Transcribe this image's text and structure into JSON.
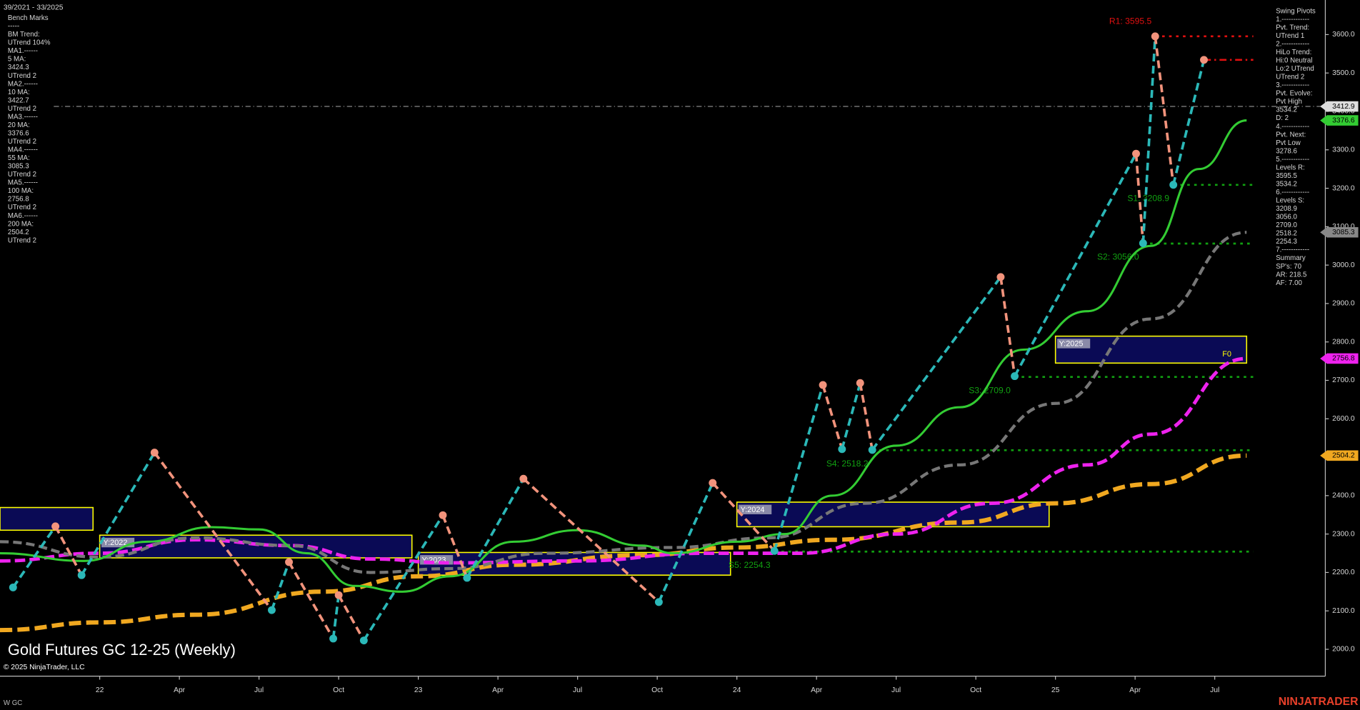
{
  "chart_data": {
    "type": "pivot-chart",
    "title": "Gold Futures GC 12-25 (Weekly)",
    "copyright": "© 2025 NinjaTrader, LLC",
    "range_label": "39/2021 - 33/2025",
    "symbol": "W GC",
    "brand": "NINJATRADER",
    "xlim": [
      2021.687,
      2025.847
    ],
    "ylim": [
      1930,
      3690
    ],
    "xticks": [
      {
        "value": 2022,
        "label": "22"
      },
      {
        "value": 2022.25,
        "label": "Apr"
      },
      {
        "value": 2022.5,
        "label": "Jul"
      },
      {
        "value": 2022.75,
        "label": "Oct"
      },
      {
        "value": 2023,
        "label": "23"
      },
      {
        "value": 2023.25,
        "label": "Apr"
      },
      {
        "value": 2023.5,
        "label": "Jul"
      },
      {
        "value": 2023.75,
        "label": "Oct"
      },
      {
        "value": 2024,
        "label": "24"
      },
      {
        "value": 2024.25,
        "label": "Apr"
      },
      {
        "value": 2024.5,
        "label": "Jul"
      },
      {
        "value": 2024.75,
        "label": "Oct"
      },
      {
        "value": 2025,
        "label": "25"
      },
      {
        "value": 2025.25,
        "label": "Apr"
      },
      {
        "value": 2025.5,
        "label": "Jul"
      }
    ],
    "yticks": [
      {
        "value": 2000,
        "label": "2000.0"
      },
      {
        "value": 2100,
        "label": "2100.0"
      },
      {
        "value": 2200,
        "label": "2200.0"
      },
      {
        "value": 2300,
        "label": "2300.0"
      },
      {
        "value": 2400,
        "label": "2400.0"
      },
      {
        "value": 2500,
        "label": "2500.0"
      },
      {
        "value": 2600,
        "label": "2600.0"
      },
      {
        "value": 2700,
        "label": "2700.0"
      },
      {
        "value": 2800,
        "label": "2800.0"
      },
      {
        "value": 2900,
        "label": "2900.0"
      },
      {
        "value": 3000,
        "label": "3000.0"
      },
      {
        "value": 3100,
        "label": "3100.0"
      },
      {
        "value": 3200,
        "label": "3200.0"
      },
      {
        "value": 3300,
        "label": "3300.0"
      },
      {
        "value": 3400,
        "label": "3400.0"
      },
      {
        "value": 3500,
        "label": "3500.0"
      },
      {
        "value": 3600,
        "label": "3600.0"
      }
    ],
    "pivots": {
      "up_color": "#2bb8b8",
      "down_color": "#f2937c",
      "x": [
        2021.728,
        2021.861,
        2021.943,
        2022.172,
        2022.54,
        2022.594,
        2022.733,
        2022.75,
        2022.829,
        2023.077,
        2023.153,
        2023.33,
        2023.755,
        2023.924,
        2024.118,
        2024.27,
        2024.33,
        2024.387,
        2024.425,
        2024.828,
        2024.872,
        2025.253,
        2025.275,
        2025.313,
        2025.37,
        2025.466
      ],
      "values": [
        2161,
        2320,
        2193,
        2512,
        2102,
        2227,
        2028,
        2141,
        2023,
        2349,
        2186,
        2444,
        2123,
        2433,
        2256,
        2688,
        2521,
        2693,
        2519,
        2969,
        2711,
        3290,
        3057,
        3595.5,
        3208.9,
        3534.2
      ]
    },
    "moving_averages": [
      {
        "color": "#f0a820",
        "dash": "14 6",
        "width": 5,
        "x": [
          2021.687,
          2022.0,
          2022.3,
          2022.7,
          2023.0,
          2023.3,
          2023.7,
          2024.0,
          2024.3,
          2024.7,
          2025.0,
          2025.3,
          2025.6
        ],
        "values": [
          2050,
          2070,
          2090,
          2150,
          2190,
          2220,
          2245,
          2265,
          2285,
          2330,
          2380,
          2430,
          2504.2
        ]
      },
      {
        "color": "#ee22ee",
        "dash": "12 5",
        "width": 4,
        "x": [
          2021.687,
          2022.0,
          2022.3,
          2022.6,
          2022.85,
          2023.1,
          2023.5,
          2023.9,
          2024.2,
          2024.5,
          2024.8,
          2025.1,
          2025.3,
          2025.6
        ],
        "values": [
          2230,
          2250,
          2285,
          2270,
          2235,
          2225,
          2230,
          2250,
          2250,
          2300,
          2380,
          2480,
          2560,
          2756.8
        ]
      },
      {
        "color": "#777777",
        "dash": "10 5",
        "width": 3.5,
        "x": [
          2021.687,
          2022.0,
          2022.3,
          2022.6,
          2022.85,
          2023.1,
          2023.4,
          2023.8,
          2024.1,
          2024.4,
          2024.7,
          2025.0,
          2025.3,
          2025.6
        ],
        "values": [
          2280,
          2240,
          2290,
          2270,
          2200,
          2210,
          2250,
          2265,
          2290,
          2380,
          2480,
          2640,
          2860,
          3085.3
        ]
      },
      {
        "color": "#33cc33",
        "dash": "",
        "width": 2.5,
        "x": [
          2021.687,
          2021.95,
          2022.15,
          2022.35,
          2022.5,
          2022.65,
          2022.8,
          2022.95,
          2023.1,
          2023.3,
          2023.5,
          2023.7,
          2023.8,
          2024.0,
          2024.15,
          2024.3,
          2024.5,
          2024.7,
          2024.9,
          2025.1,
          2025.3,
          2025.45,
          2025.6
        ],
        "values": [
          2250,
          2230,
          2280,
          2318,
          2312,
          2250,
          2165,
          2150,
          2190,
          2280,
          2310,
          2270,
          2250,
          2280,
          2300,
          2400,
          2530,
          2630,
          2780,
          2880,
          3050,
          3250,
          3376.6
        ]
      }
    ],
    "levels": [
      {
        "label": "R1: 3595.5",
        "value": 3595.5,
        "x0": 2025.313,
        "color": "#e01010",
        "dash": "3 5"
      },
      {
        "value": 3534.2,
        "x0": 2025.466,
        "color": "#e01010",
        "dash": "8 4 2 4"
      },
      {
        "label": "S1: 3208.9",
        "value": 3208.9,
        "x0": 2025.37,
        "color": "#11a011",
        "dash": "3 5"
      },
      {
        "label": "S2: 3056.0",
        "value": 3056.0,
        "x0": 2025.275,
        "color": "#11a011",
        "dash": "3 5"
      },
      {
        "label": "S3: 2709.0",
        "value": 2709.0,
        "x0": 2024.872,
        "color": "#11a011",
        "dash": "3 5"
      },
      {
        "label": "S4: 2518.2",
        "value": 2518.2,
        "x0": 2024.425,
        "color": "#11a011",
        "dash": "3 5"
      },
      {
        "label": "S5: 2254.3",
        "value": 2254.3,
        "x0": 2024.118,
        "color": "#11a011",
        "dash": "3 5"
      }
    ],
    "price_line": 3412.9,
    "badges": [
      {
        "value": 3412.9,
        "color": "#dddddd"
      },
      {
        "value": 3376.6,
        "color": "#33cc33"
      },
      {
        "value": 3085.3,
        "color": "#888888"
      },
      {
        "value": 2756.8,
        "color": "#ee22ee"
      },
      {
        "value": 2504.2,
        "color": "#f0a820"
      }
    ],
    "year_boxes": [
      {
        "x0": 2021.687,
        "x1": 2021.979,
        "low": 2310,
        "high": 2369
      },
      {
        "label": "Y:2022",
        "x0": 2022.0,
        "x1": 2022.98,
        "low": 2238,
        "high": 2297
      },
      {
        "label": "Y:2023",
        "x0": 2023.0,
        "x1": 2023.98,
        "low": 2193,
        "high": 2252
      },
      {
        "label": "Y:2024",
        "x0": 2024.0,
        "x1": 2024.98,
        "low": 2319,
        "high": 2383
      },
      {
        "label": "Y:2025",
        "x0": 2025.0,
        "x1": 2025.6,
        "low": 2745,
        "high": 2815
      }
    ],
    "annotation": "F0",
    "left_panel": [
      "Bench Marks",
      "-----",
      "BM Trend:",
      "UTrend 104%",
      "MA1.------",
      "5 MA:",
      "3424.3",
      "UTrend 2",
      "MA2.------",
      "10 MA:",
      "3422.7",
      "UTrend 2",
      "MA3.------",
      "20 MA:",
      "3376.6",
      "UTrend 2",
      "MA4.------",
      "55 MA:",
      "3085.3",
      "UTrend 2",
      "MA5.------",
      "100 MA:",
      "2756.8",
      "UTrend 2",
      "MA6.------",
      "200 MA:",
      "2504.2",
      "UTrend 2"
    ],
    "right_panel": [
      "Swing Pivots",
      "1.------------",
      "Pvt. Trend:",
      "UTrend 1",
      "2.------------",
      "HiLo Trend:",
      "Hi:0 Neutral",
      "Lo:2 UTrend",
      "UTrend 2",
      "3.------------",
      "Pvt. Evolve:",
      "Pvt High",
      "3534.2",
      "D: 2",
      "4.------------",
      "Pvt. Next:",
      "Pvt Low",
      "3278.6",
      "5.------------",
      "Levels R:",
      "3595.5",
      "3534.2",
      "6.------------",
      "Levels S:",
      "3208.9",
      "3056.0",
      "2709.0",
      "2518.2",
      "2254.3",
      "7.------------",
      "Summary",
      "SP's: 70",
      "AR: 218.5",
      "AF: 7.00"
    ]
  }
}
